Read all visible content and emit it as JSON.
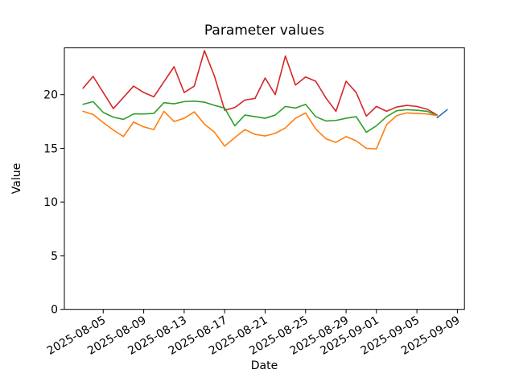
{
  "title": "Parameter values",
  "xlabel": "Date",
  "ylabel": "Value",
  "chart_data": {
    "type": "line",
    "title": "Parameter values",
    "xlabel": "Date",
    "ylabel": "Value",
    "grid": false,
    "legend": null,
    "ylim": [
      0,
      24.36
    ],
    "y_ticks": [
      0,
      5,
      10,
      15,
      20
    ],
    "x_tick_labels": [
      "2025-08-05",
      "2025-08-09",
      "2025-08-13",
      "2025-08-17",
      "2025-08-21",
      "2025-08-25",
      "2025-08-29",
      "2025-09-01",
      "2025-09-05",
      "2025-09-09"
    ],
    "xlim_nums": [
      1.16,
      40.7
    ],
    "xlim_note": "day number: August dates = day, September dates = 31 + day",
    "series": [
      {
        "name": "red-series",
        "color": "#d62728",
        "dates": [
          "2025-08-03",
          "2025-08-04",
          "2025-08-05",
          "2025-08-06",
          "2025-08-07",
          "2025-08-08",
          "2025-08-09",
          "2025-08-10",
          "2025-08-11",
          "2025-08-12",
          "2025-08-13",
          "2025-08-14",
          "2025-08-15",
          "2025-08-16",
          "2025-08-17",
          "2025-08-18",
          "2025-08-19",
          "2025-08-20",
          "2025-08-21",
          "2025-08-22",
          "2025-08-23",
          "2025-08-24",
          "2025-08-25",
          "2025-08-26",
          "2025-08-27",
          "2025-08-28",
          "2025-08-29",
          "2025-08-30",
          "2025-08-31",
          "2025-09-01",
          "2025-09-02",
          "2025-09-03",
          "2025-09-04",
          "2025-09-05",
          "2025-09-06",
          "2025-09-07"
        ],
        "values": [
          20.6,
          21.7,
          20.2,
          18.7,
          19.75,
          20.8,
          20.2,
          19.8,
          21.2,
          22.6,
          20.2,
          20.8,
          24.1,
          21.7,
          18.55,
          18.8,
          19.5,
          19.65,
          21.55,
          20.0,
          23.6,
          20.9,
          21.65,
          21.25,
          19.7,
          18.45,
          21.25,
          20.2,
          18.0,
          18.9,
          18.45,
          18.85,
          19.0,
          18.9,
          18.65,
          18.1
        ]
      },
      {
        "name": "green-series",
        "color": "#2ca02c",
        "dates": [
          "2025-08-03",
          "2025-08-04",
          "2025-08-05",
          "2025-08-06",
          "2025-08-07",
          "2025-08-08",
          "2025-08-09",
          "2025-08-10",
          "2025-08-11",
          "2025-08-12",
          "2025-08-13",
          "2025-08-14",
          "2025-08-15",
          "2025-08-16",
          "2025-08-17",
          "2025-08-18",
          "2025-08-19",
          "2025-08-20",
          "2025-08-21",
          "2025-08-22",
          "2025-08-23",
          "2025-08-24",
          "2025-08-25",
          "2025-08-26",
          "2025-08-27",
          "2025-08-28",
          "2025-08-29",
          "2025-08-30",
          "2025-08-31",
          "2025-09-01",
          "2025-09-02",
          "2025-09-03",
          "2025-09-04",
          "2025-09-05",
          "2025-09-06",
          "2025-09-07"
        ],
        "values": [
          19.1,
          19.35,
          18.35,
          17.9,
          17.7,
          18.2,
          18.2,
          18.25,
          19.25,
          19.15,
          19.35,
          19.4,
          19.3,
          19.0,
          18.75,
          17.1,
          18.1,
          17.95,
          17.8,
          18.1,
          18.9,
          18.75,
          19.1,
          17.95,
          17.55,
          17.6,
          17.8,
          17.95,
          16.5,
          17.1,
          17.95,
          18.5,
          18.6,
          18.55,
          18.45,
          18.05
        ]
      },
      {
        "name": "orange-series",
        "color": "#ff7f0e",
        "dates": [
          "2025-08-03",
          "2025-08-04",
          "2025-08-05",
          "2025-08-06",
          "2025-08-07",
          "2025-08-08",
          "2025-08-09",
          "2025-08-10",
          "2025-08-11",
          "2025-08-12",
          "2025-08-13",
          "2025-08-14",
          "2025-08-15",
          "2025-08-16",
          "2025-08-17",
          "2025-08-18",
          "2025-08-19",
          "2025-08-20",
          "2025-08-21",
          "2025-08-22",
          "2025-08-23",
          "2025-08-24",
          "2025-08-25",
          "2025-08-26",
          "2025-08-27",
          "2025-08-28",
          "2025-08-29",
          "2025-08-30",
          "2025-08-31",
          "2025-09-01",
          "2025-09-02",
          "2025-09-03",
          "2025-09-04",
          "2025-09-05",
          "2025-09-06",
          "2025-09-07"
        ],
        "values": [
          18.45,
          18.15,
          17.4,
          16.7,
          16.1,
          17.45,
          17.0,
          16.75,
          18.45,
          17.5,
          17.8,
          18.4,
          17.25,
          16.5,
          15.2,
          16.0,
          16.75,
          16.3,
          16.15,
          16.4,
          16.9,
          17.8,
          18.3,
          16.8,
          15.9,
          15.55,
          16.1,
          15.7,
          15.0,
          14.95,
          17.2,
          18.05,
          18.3,
          18.25,
          18.2,
          18.05
        ]
      },
      {
        "name": "blue-series",
        "color": "#1f77b4",
        "dates": [
          "2025-09-07",
          "2025-09-08"
        ],
        "values": [
          17.85,
          18.6
        ]
      }
    ]
  }
}
